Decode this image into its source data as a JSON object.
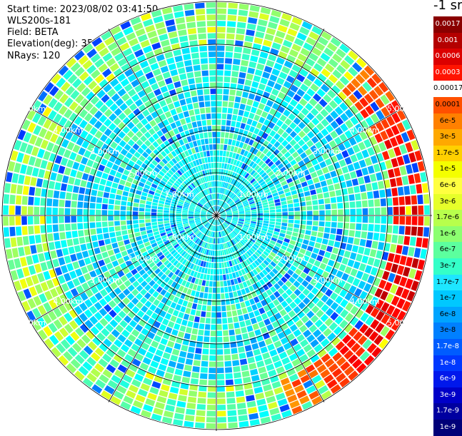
{
  "header": {
    "start_time": "Start time: 2023/08/02 03:41:50",
    "device": "WLS200s-181",
    "field": "Field: BETA",
    "elevation": "Elevation(deg): 35.30",
    "nrays": "NRays: 120"
  },
  "chart_data": {
    "type": "heatmap",
    "projection": "polar-ppi",
    "rays": 120,
    "range_rings_km": [
      1,
      2,
      3,
      4,
      5
    ],
    "ring_labels": [
      "1.00km",
      "2.00km",
      "3.00km",
      "4.00km",
      "5.00km"
    ],
    "max_range_km": 5,
    "radial_spokes": 12,
    "legend": {
      "title": "-1 sr",
      "placement": "right",
      "ticks": [
        "0.0017",
        "0.001",
        "0.0006",
        "0.0003",
        "0.00017",
        "0.0001",
        "6e-5",
        "3e-5",
        "1.7e-5",
        "1e-5",
        "6e-6",
        "3e-6",
        "1.7e-6",
        "1e-6",
        "6e-7",
        "3e-7",
        "1.7e-7",
        "1e-7",
        "6e-8",
        "3e-8",
        "1.7e-8",
        "1e-8",
        "6e-9",
        "3e-9",
        "1.7e-9",
        "1e-9"
      ],
      "colors": [
        "#8a0000",
        "#b40000",
        "#dc0000",
        "#ff1400",
        "#ffffff",
        "#ff5000",
        "#ff8000",
        "#ffa800",
        "#ffd000",
        "#f4ff00",
        "#ffff40",
        "#e6ff2a",
        "#b8ff4c",
        "#8cff70",
        "#5cff9e",
        "#34ffc8",
        "#1ee6ff",
        "#00c8ff",
        "#00a4ff",
        "#0080ff",
        "#005cff",
        "#0038ff",
        "#0018ec",
        "#0000c8",
        "#0000a0",
        "#000078"
      ]
    }
  }
}
